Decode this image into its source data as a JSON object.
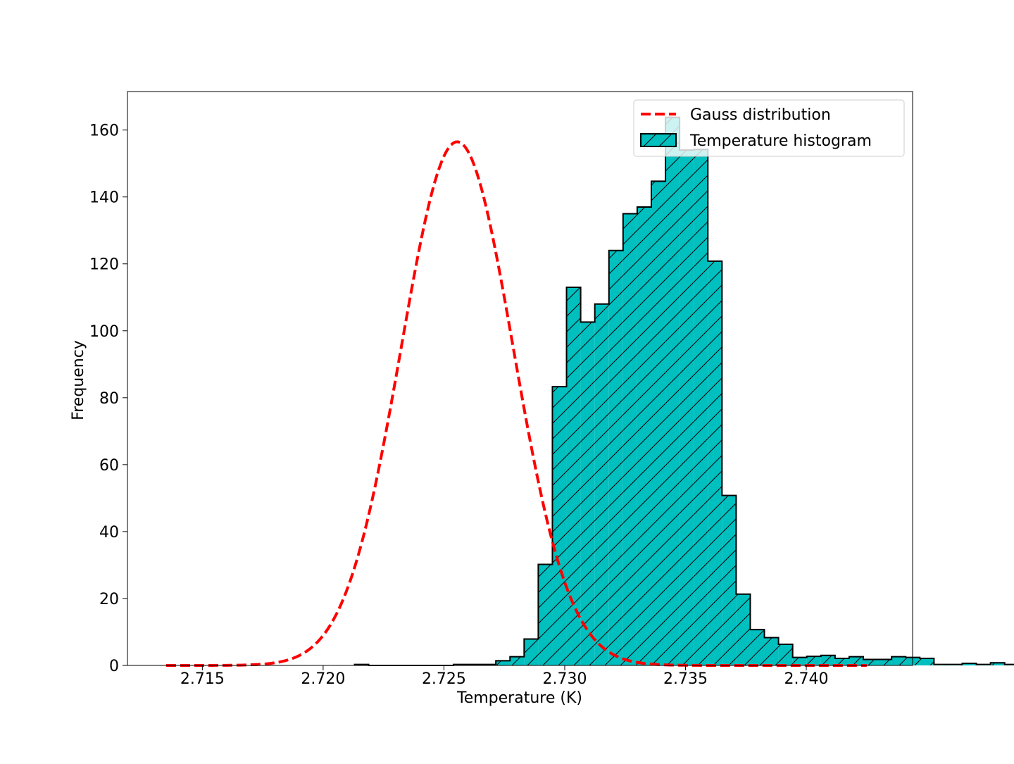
{
  "colors": {
    "bar_fill": "#00bfbf",
    "bar_edge": "#000000",
    "gauss_line": "#ff0000",
    "axes_edge": "#000000",
    "background": "#ffffff"
  },
  "chart_data": {
    "type": "bar",
    "title": "",
    "xlabel": "Temperature (K)",
    "ylabel": "Frequency",
    "xlim": [
      2.7119,
      2.7444
    ],
    "ylim": [
      0,
      171.5
    ],
    "xticks": [
      2.715,
      2.72,
      2.725,
      2.73,
      2.735,
      2.74
    ],
    "xtick_labels": [
      "2.715",
      "2.720",
      "2.725",
      "2.730",
      "2.735",
      "2.740"
    ],
    "yticks": [
      0,
      20,
      40,
      60,
      80,
      100,
      120,
      140,
      160
    ],
    "ytick_labels": [
      "0",
      "20",
      "40",
      "60",
      "80",
      "100",
      "120",
      "140",
      "160"
    ],
    "grid": false,
    "legend": {
      "placement": "top-right",
      "entries": [
        "Gauss distribution",
        "Temperature histogram"
      ]
    },
    "series": [
      {
        "name": "Temperature histogram",
        "kind": "histogram",
        "hatch": "diagonal",
        "bin_start": 2.7213,
        "bin_width": 0.000585,
        "counts": [
          0.3,
          0,
          0,
          0,
          0,
          0,
          0,
          0.3,
          0.3,
          0.3,
          1.4,
          2.6,
          7.9,
          30.2,
          83.3,
          113.0,
          102.6,
          108.0,
          124.0,
          135.0,
          137.0,
          144.7,
          163.8,
          154.0,
          154.2,
          120.8,
          50.8,
          21.3,
          10.7,
          8.3,
          6.3,
          2.4,
          2.7,
          3.0,
          2.1,
          2.6,
          1.8,
          1.8,
          2.6,
          2.4,
          2.1,
          0.3,
          0.3,
          0.6,
          0.3,
          0.8,
          0.3,
          0.7,
          0.3,
          0.7,
          0.3
        ]
      },
      {
        "name": "Gauss distribution",
        "kind": "line",
        "style": "dashed",
        "mean": 2.72555,
        "sigma": 0.00232,
        "peak": 156.5,
        "x_range": [
          2.7135,
          2.7425
        ]
      }
    ]
  }
}
